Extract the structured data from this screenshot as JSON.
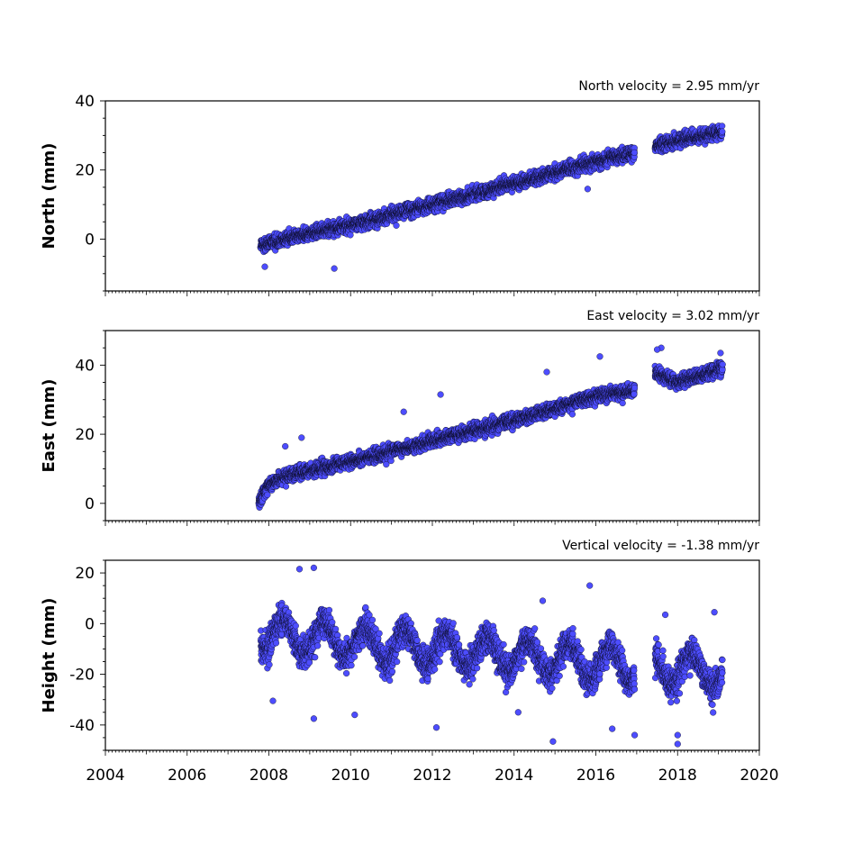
{
  "chart_data": [
    {
      "type": "scatter",
      "title": "North velocity = 2.95 mm/yr",
      "xlabel": "",
      "ylabel": "North (mm)",
      "xlim": [
        2004,
        2020
      ],
      "ylim": [
        -15,
        40
      ],
      "yticks": [
        0,
        20,
        40
      ],
      "xticks": [
        2004,
        2006,
        2008,
        2010,
        2012,
        2014,
        2016,
        2018,
        2020
      ],
      "x_tick_labels_shown": false,
      "grid": false,
      "marker_color": "#4d4dff",
      "marker_edge": "#000000",
      "trend": {
        "segments": [
          {
            "x": [
              2007.8,
              2008.5,
              2010.0,
              2012.0,
              2014.0,
              2016.0,
              2016.95
            ],
            "y": [
              -2.0,
              0.5,
              4.0,
              10.0,
              16.0,
              22.5,
              25.0
            ]
          },
          {
            "x": [
              2017.45,
              2018.0,
              2019.1
            ],
            "y": [
              27.0,
              28.5,
              31.0
            ]
          }
        ]
      },
      "scatter_spread": 1.8,
      "outliers": [
        {
          "x": 2009.6,
          "y": -8.5
        },
        {
          "x": 2007.9,
          "y": -8.0
        },
        {
          "x": 2015.8,
          "y": 14.5
        }
      ]
    },
    {
      "type": "scatter",
      "title": "East velocity = 3.02 mm/yr",
      "xlabel": "",
      "ylabel": "East (mm)",
      "xlim": [
        2004,
        2020
      ],
      "ylim": [
        -5,
        50
      ],
      "yticks": [
        0,
        20,
        40
      ],
      "xticks": [
        2004,
        2006,
        2008,
        2010,
        2012,
        2014,
        2016,
        2018,
        2020
      ],
      "x_tick_labels_shown": false,
      "grid": false,
      "marker_color": "#4d4dff",
      "marker_edge": "#000000",
      "trend": {
        "segments": [
          {
            "x": [
              2007.75,
              2007.95,
              2008.4,
              2010.0,
              2012.0,
              2014.0,
              2016.0,
              2016.95
            ],
            "y": [
              0.0,
              5.0,
              8.0,
              12.0,
              18.0,
              24.0,
              31.0,
              32.5
            ]
          },
          {
            "x": [
              2017.45,
              2018.0,
              2019.1
            ],
            "y": [
              38.0,
              35.0,
              39.0
            ]
          }
        ]
      },
      "scatter_spread": 1.8,
      "outliers": [
        {
          "x": 2008.4,
          "y": 16.5
        },
        {
          "x": 2008.8,
          "y": 19.0
        },
        {
          "x": 2012.2,
          "y": 31.5
        },
        {
          "x": 2011.3,
          "y": 26.5
        },
        {
          "x": 2014.8,
          "y": 38.0
        },
        {
          "x": 2016.1,
          "y": 42.5
        },
        {
          "x": 2017.6,
          "y": 45.0
        },
        {
          "x": 2017.5,
          "y": 44.5
        },
        {
          "x": 2019.05,
          "y": 43.5
        }
      ]
    },
    {
      "type": "scatter",
      "title": "Vertical velocity = -1.38 mm/yr",
      "xlabel": "",
      "ylabel": "Height (mm)",
      "xlim": [
        2004,
        2020
      ],
      "ylim": [
        -50,
        25
      ],
      "yticks": [
        -40,
        -20,
        0,
        20
      ],
      "xticks": [
        2004,
        2006,
        2008,
        2010,
        2012,
        2014,
        2016,
        2018,
        2020
      ],
      "x_tick_labels": [
        "2004",
        "2006",
        "2008",
        "2010",
        "2012",
        "2014",
        "2016",
        "2018",
        "2020"
      ],
      "x_tick_labels_shown": true,
      "grid": false,
      "marker_color": "#4d4dff",
      "marker_edge": "#000000",
      "trend": {
        "segments": [
          {
            "x": [
              2007.8,
              2016.95
            ],
            "y": [
              -4.0,
              -16.5
            ]
          },
          {
            "x": [
              2017.45,
              2019.1
            ],
            "y": [
              -17.0,
              -19.0
            ]
          }
        ]
      },
      "seasonal_amplitude": 6.5,
      "scatter_spread": 5.5,
      "outliers": [
        {
          "x": 2008.75,
          "y": 21.5
        },
        {
          "x": 2009.1,
          "y": 22.0
        },
        {
          "x": 2008.1,
          "y": -30.5
        },
        {
          "x": 2009.1,
          "y": -37.5
        },
        {
          "x": 2010.1,
          "y": -36.0
        },
        {
          "x": 2012.1,
          "y": -41.0
        },
        {
          "x": 2014.1,
          "y": -35.0
        },
        {
          "x": 2014.95,
          "y": -46.5
        },
        {
          "x": 2016.4,
          "y": -41.5
        },
        {
          "x": 2016.95,
          "y": -44.0
        },
        {
          "x": 2018.0,
          "y": -47.5
        },
        {
          "x": 2018.0,
          "y": -44.0
        },
        {
          "x": 2017.7,
          "y": 3.5
        },
        {
          "x": 2015.85,
          "y": 15.0
        },
        {
          "x": 2014.7,
          "y": 9.0
        },
        {
          "x": 2018.9,
          "y": 4.5
        }
      ]
    }
  ]
}
